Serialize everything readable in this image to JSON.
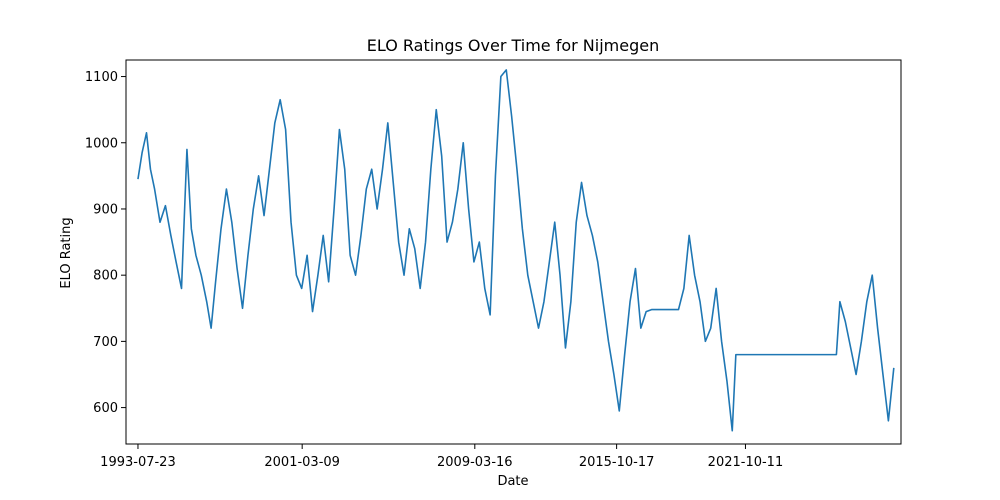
{
  "chart_data": {
    "type": "line",
    "title": "ELO Ratings Over Time for Nijmegen",
    "xlabel": "Date",
    "ylabel": "ELO Rating",
    "x_ticks": [
      "1993-07-23",
      "2001-03-09",
      "2009-03-16",
      "2015-10-17",
      "2021-10-11"
    ],
    "y_ticks": [
      600,
      700,
      800,
      900,
      1000,
      1100
    ],
    "xlim": [
      "1993-01-01",
      "2029-01-01"
    ],
    "ylim": [
      545,
      1125
    ],
    "grid": false,
    "series": [
      {
        "color": "#1f77b4",
        "points": [
          [
            "1993-07-23",
            945
          ],
          [
            "1993-10-01",
            985
          ],
          [
            "1993-12-15",
            1015
          ],
          [
            "1994-02-20",
            960
          ],
          [
            "1994-05-01",
            930
          ],
          [
            "1994-08-01",
            880
          ],
          [
            "1994-11-01",
            905
          ],
          [
            "1995-02-01",
            860
          ],
          [
            "1995-05-01",
            820
          ],
          [
            "1995-08-01",
            780
          ],
          [
            "1995-11-01",
            990
          ],
          [
            "1996-01-15",
            870
          ],
          [
            "1996-04-01",
            830
          ],
          [
            "1996-07-01",
            800
          ],
          [
            "1996-10-01",
            760
          ],
          [
            "1996-12-15",
            720
          ],
          [
            "1997-03-01",
            790
          ],
          [
            "1997-06-01",
            870
          ],
          [
            "1997-09-01",
            930
          ],
          [
            "1997-12-01",
            880
          ],
          [
            "1998-03-01",
            810
          ],
          [
            "1998-06-01",
            750
          ],
          [
            "1998-09-01",
            830
          ],
          [
            "1998-12-01",
            900
          ],
          [
            "1999-03-01",
            950
          ],
          [
            "1999-06-01",
            890
          ],
          [
            "1999-09-01",
            960
          ],
          [
            "1999-12-01",
            1030
          ],
          [
            "2000-03-01",
            1065
          ],
          [
            "2000-06-01",
            1020
          ],
          [
            "2000-09-01",
            880
          ],
          [
            "2000-12-01",
            800
          ],
          [
            "2001-03-01",
            780
          ],
          [
            "2001-06-01",
            830
          ],
          [
            "2001-09-01",
            745
          ],
          [
            "2001-12-01",
            800
          ],
          [
            "2002-03-01",
            860
          ],
          [
            "2002-06-01",
            790
          ],
          [
            "2002-09-01",
            900
          ],
          [
            "2002-12-01",
            1020
          ],
          [
            "2003-03-01",
            960
          ],
          [
            "2003-06-01",
            830
          ],
          [
            "2003-09-01",
            800
          ],
          [
            "2003-12-01",
            860
          ],
          [
            "2004-03-01",
            930
          ],
          [
            "2004-06-01",
            960
          ],
          [
            "2004-09-01",
            900
          ],
          [
            "2004-12-01",
            960
          ],
          [
            "2005-03-01",
            1030
          ],
          [
            "2005-06-01",
            940
          ],
          [
            "2005-09-01",
            850
          ],
          [
            "2005-12-01",
            800
          ],
          [
            "2006-03-01",
            870
          ],
          [
            "2006-06-01",
            840
          ],
          [
            "2006-09-01",
            780
          ],
          [
            "2006-12-01",
            850
          ],
          [
            "2007-03-01",
            960
          ],
          [
            "2007-06-01",
            1050
          ],
          [
            "2007-09-01",
            980
          ],
          [
            "2007-12-01",
            850
          ],
          [
            "2008-03-01",
            880
          ],
          [
            "2008-06-01",
            930
          ],
          [
            "2008-09-01",
            1000
          ],
          [
            "2008-12-01",
            900
          ],
          [
            "2009-03-01",
            820
          ],
          [
            "2009-06-01",
            850
          ],
          [
            "2009-09-01",
            780
          ],
          [
            "2009-12-01",
            740
          ],
          [
            "2010-03-01",
            950
          ],
          [
            "2010-06-01",
            1100
          ],
          [
            "2010-09-01",
            1110
          ],
          [
            "2010-12-01",
            1040
          ],
          [
            "2011-03-01",
            960
          ],
          [
            "2011-06-01",
            870
          ],
          [
            "2011-09-01",
            800
          ],
          [
            "2011-12-01",
            760
          ],
          [
            "2012-03-01",
            720
          ],
          [
            "2012-06-01",
            760
          ],
          [
            "2012-09-01",
            820
          ],
          [
            "2012-12-01",
            880
          ],
          [
            "2013-03-01",
            800
          ],
          [
            "2013-06-01",
            690
          ],
          [
            "2013-09-01",
            760
          ],
          [
            "2013-12-01",
            880
          ],
          [
            "2014-03-01",
            940
          ],
          [
            "2014-06-01",
            890
          ],
          [
            "2014-09-01",
            860
          ],
          [
            "2014-12-01",
            820
          ],
          [
            "2015-03-01",
            760
          ],
          [
            "2015-06-01",
            700
          ],
          [
            "2015-09-01",
            650
          ],
          [
            "2015-12-01",
            595
          ],
          [
            "2016-03-01",
            680
          ],
          [
            "2016-06-01",
            760
          ],
          [
            "2016-09-01",
            810
          ],
          [
            "2016-12-01",
            720
          ],
          [
            "2017-03-01",
            745
          ],
          [
            "2017-06-01",
            748
          ],
          [
            "2017-09-01",
            748
          ],
          [
            "2017-12-01",
            748
          ],
          [
            "2018-03-01",
            748
          ],
          [
            "2018-06-01",
            748
          ],
          [
            "2018-09-01",
            748
          ],
          [
            "2018-12-01",
            780
          ],
          [
            "2019-03-01",
            860
          ],
          [
            "2019-06-01",
            800
          ],
          [
            "2019-09-01",
            760
          ],
          [
            "2019-12-01",
            700
          ],
          [
            "2020-03-01",
            720
          ],
          [
            "2020-06-01",
            780
          ],
          [
            "2020-09-01",
            700
          ],
          [
            "2020-12-01",
            640
          ],
          [
            "2021-03-01",
            565
          ],
          [
            "2021-05-01",
            680
          ],
          [
            "2021-08-01",
            680
          ],
          [
            "2022-01-01",
            680
          ],
          [
            "2023-01-01",
            680
          ],
          [
            "2024-01-01",
            680
          ],
          [
            "2025-01-01",
            680
          ],
          [
            "2025-10-01",
            680
          ],
          [
            "2026-01-01",
            680
          ],
          [
            "2026-03-01",
            760
          ],
          [
            "2026-06-01",
            730
          ],
          [
            "2026-09-01",
            690
          ],
          [
            "2026-12-01",
            650
          ],
          [
            "2027-03-01",
            700
          ],
          [
            "2027-06-01",
            760
          ],
          [
            "2027-09-01",
            800
          ],
          [
            "2027-12-01",
            720
          ],
          [
            "2028-03-01",
            650
          ],
          [
            "2028-06-01",
            580
          ],
          [
            "2028-09-01",
            660
          ]
        ]
      }
    ]
  }
}
